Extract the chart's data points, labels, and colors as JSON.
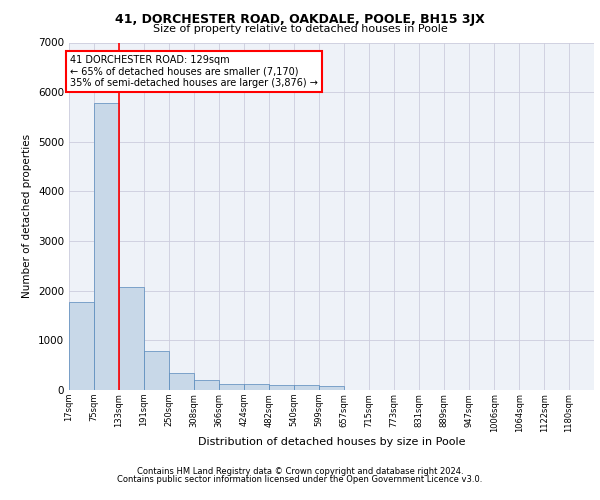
{
  "title1": "41, DORCHESTER ROAD, OAKDALE, POOLE, BH15 3JX",
  "title2": "Size of property relative to detached houses in Poole",
  "xlabel": "Distribution of detached houses by size in Poole",
  "ylabel": "Number of detached properties",
  "footer1": "Contains HM Land Registry data © Crown copyright and database right 2024.",
  "footer2": "Contains public sector information licensed under the Open Government Licence v3.0.",
  "bar_left_edges": [
    17,
    75,
    133,
    191,
    250,
    308,
    366,
    424,
    482,
    540,
    599,
    657,
    715,
    773,
    831,
    889,
    947,
    1006,
    1064,
    1122
  ],
  "bar_heights": [
    1780,
    5780,
    2080,
    790,
    340,
    200,
    130,
    115,
    110,
    110,
    80,
    0,
    0,
    0,
    0,
    0,
    0,
    0,
    0,
    0
  ],
  "bin_width": 58,
  "bar_color": "#c8d8e8",
  "bar_edge_color": "#5588bb",
  "grid_color": "#ccccdd",
  "background_color": "#eef2f8",
  "vline_x": 133,
  "vline_color": "red",
  "annotation_text": "41 DORCHESTER ROAD: 129sqm\n← 65% of detached houses are smaller (7,170)\n35% of semi-detached houses are larger (3,876) →",
  "annotation_box_color": "red",
  "ylim": [
    0,
    7000
  ],
  "yticks": [
    0,
    1000,
    2000,
    3000,
    4000,
    5000,
    6000,
    7000
  ],
  "tick_labels": [
    "17sqm",
    "75sqm",
    "133sqm",
    "191sqm",
    "250sqm",
    "308sqm",
    "366sqm",
    "424sqm",
    "482sqm",
    "540sqm",
    "599sqm",
    "657sqm",
    "715sqm",
    "773sqm",
    "831sqm",
    "889sqm",
    "947sqm",
    "1006sqm",
    "1064sqm",
    "1122sqm",
    "1180sqm"
  ],
  "xlim_left": 17,
  "xlim_right": 1238
}
